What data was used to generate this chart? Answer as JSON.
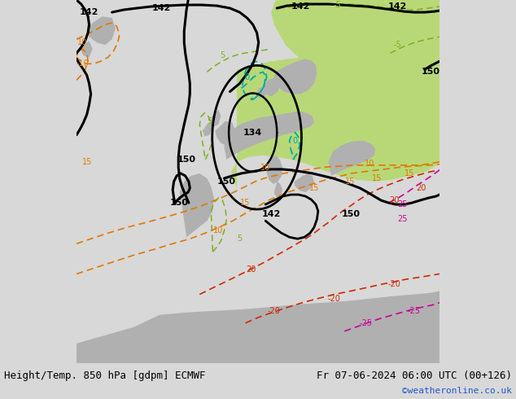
{
  "title_left": "Height/Temp. 850 hPa [gdpm] ECMWF",
  "title_right": "Fr 07-06-2024 06:00 UTC (00+126)",
  "credit": "©weatheronline.co.uk",
  "bg_color": "#d8d8d8",
  "sea_color": "#d8d8d8",
  "land_gray": "#b0b0b0",
  "green_color": "#b8d878",
  "fig_width": 6.34,
  "fig_height": 4.9,
  "dpi": 100
}
